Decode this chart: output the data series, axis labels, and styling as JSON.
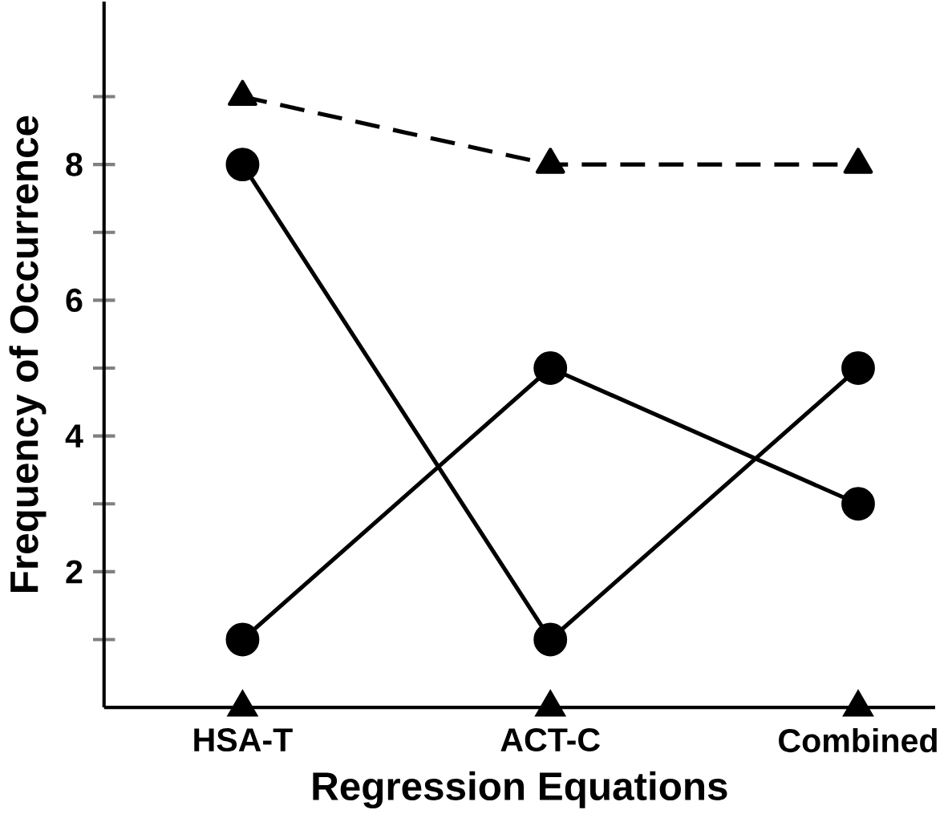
{
  "chart_data": {
    "type": "line",
    "xlabel": "Regression Equations",
    "ylabel": "Frequency of Occurrence",
    "categories": [
      "HSA-T",
      "ACT-C",
      "Combined"
    ],
    "series": [
      {
        "color": "#000000",
        "values": [
          9,
          8,
          8
        ],
        "marker": "triangle",
        "line_style": "dashed"
      },
      {
        "color": "#000000",
        "values": [
          8,
          1,
          5
        ],
        "marker": "circle",
        "line_style": "solid"
      },
      {
        "color": "#000000",
        "values": [
          1,
          5,
          3
        ],
        "marker": "circle",
        "line_style": "solid"
      },
      {
        "type": "scatter",
        "color": "#000000",
        "values": [
          0,
          0,
          0
        ],
        "marker": "triangle"
      }
    ],
    "ylim": [
      0,
      10.4
    ],
    "yticks": [
      {
        "value": 1,
        "label": null
      },
      2,
      {
        "value": 3,
        "label": null
      },
      4,
      {
        "value": 5,
        "label": null
      },
      6,
      {
        "value": 7,
        "label": null
      },
      8,
      {
        "value": 9,
        "label": null
      }
    ],
    "grid": false
  }
}
